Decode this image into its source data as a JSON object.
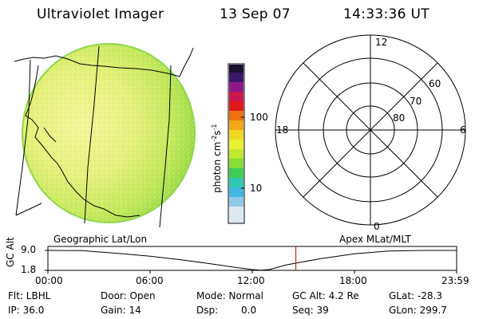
{
  "header": {
    "instrument": "Ultraviolet Imager",
    "date": "13 Sep 07",
    "time": "14:33:36 UT"
  },
  "image_panel": {
    "label": "Geographic Lat/Lon"
  },
  "colorbar": {
    "unit_label": "photon cm",
    "unit_exp1": "-2",
    "unit_s": "s",
    "unit_exp2": "-1",
    "ticks": [
      "100",
      "10"
    ]
  },
  "polar_plot": {
    "label": "Apex MLat/MLT",
    "mlt_labels": {
      "top": "12",
      "left": "18",
      "right": "6",
      "bottom": "0"
    },
    "lat_labels": [
      "60",
      "70",
      "80"
    ]
  },
  "chart_data": {
    "type": "line",
    "title": "",
    "ylabel": "GC Alt",
    "yticks": [
      "9.0",
      "1.8"
    ],
    "ylim": [
      1.8,
      9.0
    ],
    "xticks": [
      "00:00",
      "06:00",
      "12:00",
      "18:00",
      "23:59"
    ],
    "xlim_hours": [
      0,
      24
    ],
    "current_time_hours": 14.56,
    "series": [
      {
        "x": [
          0,
          2,
          4,
          6,
          8,
          10,
          11,
          12,
          12.5,
          13,
          14,
          16,
          18,
          20,
          22,
          23.98
        ],
        "y": [
          9.0,
          8.9,
          8.0,
          6.9,
          5.5,
          3.8,
          2.9,
          2.1,
          1.85,
          2.1,
          3.8,
          6.0,
          7.8,
          8.8,
          9.0,
          9.0
        ]
      }
    ],
    "marker_color": "#cc0000",
    "line_color": "#000000"
  },
  "status": {
    "flt": "Flt: LBHL",
    "ip": "IP: 36.0",
    "door": "Door: Open",
    "gain": "Gain: 14",
    "mode": "Mode: Normal",
    "dsp_label": "Dsp:",
    "dsp_value": "0.0",
    "gc_alt": "GC Alt: 4.2 Re",
    "seq": "Seq: 39",
    "glat": "GLat: -28.3",
    "glon": "GLon: 299.7"
  }
}
